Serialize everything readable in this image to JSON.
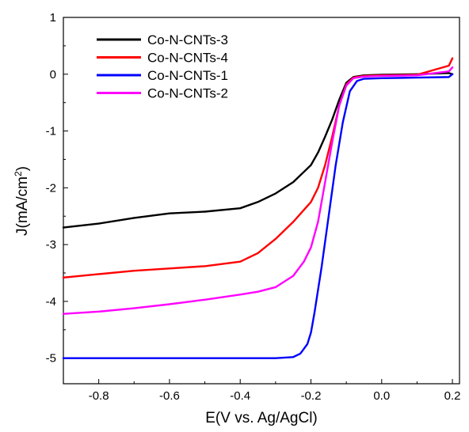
{
  "chart_data": {
    "type": "line",
    "title": "",
    "xlabel": "E(V vs. Ag/AgCl)",
    "ylabel": {
      "prefix": "J(mA/cm",
      "superscript": "2",
      "suffix": ")"
    },
    "xlim": [
      -0.9,
      0.22
    ],
    "ylim": [
      -5.45,
      1.0
    ],
    "xticks": [
      -0.8,
      -0.6,
      -0.4,
      -0.2,
      0.0,
      0.2
    ],
    "xtick_labels": [
      "-0.8",
      "-0.6",
      "-0.4",
      "-0.2",
      "0.0",
      "0.2"
    ],
    "yticks": [
      1,
      0,
      -1,
      -2,
      -3,
      -4,
      -5
    ],
    "ytick_labels": [
      "1",
      "0",
      "-1",
      "-2",
      "-3",
      "-4",
      "-5"
    ],
    "grid": false,
    "legend_position": "top-left",
    "series": [
      {
        "name": "Co-N-CNTs-3",
        "color": "#000000",
        "x": [
          -0.9,
          -0.8,
          -0.7,
          -0.6,
          -0.5,
          -0.4,
          -0.35,
          -0.3,
          -0.25,
          -0.2,
          -0.18,
          -0.16,
          -0.14,
          -0.12,
          -0.1,
          -0.08,
          -0.05,
          0.0,
          0.1,
          0.19,
          0.2
        ],
        "y": [
          -2.7,
          -2.63,
          -2.53,
          -2.45,
          -2.42,
          -2.36,
          -2.25,
          -2.1,
          -1.9,
          -1.6,
          -1.38,
          -1.1,
          -0.8,
          -0.45,
          -0.15,
          -0.05,
          -0.02,
          -0.01,
          0.0,
          0.02,
          0.0
        ]
      },
      {
        "name": "Co-N-CNTs-4",
        "color": "#ff0000",
        "x": [
          -0.9,
          -0.8,
          -0.7,
          -0.6,
          -0.5,
          -0.4,
          -0.35,
          -0.3,
          -0.25,
          -0.2,
          -0.18,
          -0.16,
          -0.14,
          -0.12,
          -0.1,
          -0.08,
          -0.05,
          0.0,
          0.1,
          0.19,
          0.2
        ],
        "y": [
          -3.58,
          -3.52,
          -3.46,
          -3.42,
          -3.38,
          -3.3,
          -3.15,
          -2.9,
          -2.6,
          -2.25,
          -2.0,
          -1.6,
          -1.1,
          -0.55,
          -0.18,
          -0.06,
          -0.03,
          -0.02,
          -0.01,
          0.15,
          0.28
        ]
      },
      {
        "name": "Co-N-CNTs-1",
        "color": "#0000ff",
        "x": [
          -0.9,
          -0.8,
          -0.6,
          -0.4,
          -0.3,
          -0.25,
          -0.23,
          -0.21,
          -0.2,
          -0.19,
          -0.17,
          -0.15,
          -0.13,
          -0.11,
          -0.09,
          -0.07,
          -0.05,
          0.0,
          0.1,
          0.19,
          0.2
        ],
        "y": [
          -5.0,
          -5.0,
          -5.0,
          -5.0,
          -5.0,
          -4.98,
          -4.92,
          -4.75,
          -4.55,
          -4.2,
          -3.4,
          -2.5,
          -1.6,
          -0.85,
          -0.3,
          -0.12,
          -0.08,
          -0.07,
          -0.06,
          -0.05,
          0.0
        ]
      },
      {
        "name": "Co-N-CNTs-2",
        "color": "#ff00ff",
        "x": [
          -0.9,
          -0.8,
          -0.7,
          -0.6,
          -0.5,
          -0.4,
          -0.35,
          -0.3,
          -0.25,
          -0.22,
          -0.2,
          -0.18,
          -0.16,
          -0.14,
          -0.12,
          -0.1,
          -0.08,
          -0.05,
          0.0,
          0.1,
          0.19,
          0.2
        ],
        "y": [
          -4.22,
          -4.18,
          -4.12,
          -4.05,
          -3.97,
          -3.88,
          -3.83,
          -3.75,
          -3.55,
          -3.3,
          -3.05,
          -2.6,
          -1.9,
          -1.2,
          -0.55,
          -0.2,
          -0.07,
          -0.04,
          -0.03,
          -0.02,
          0.05,
          0.12
        ]
      }
    ]
  }
}
